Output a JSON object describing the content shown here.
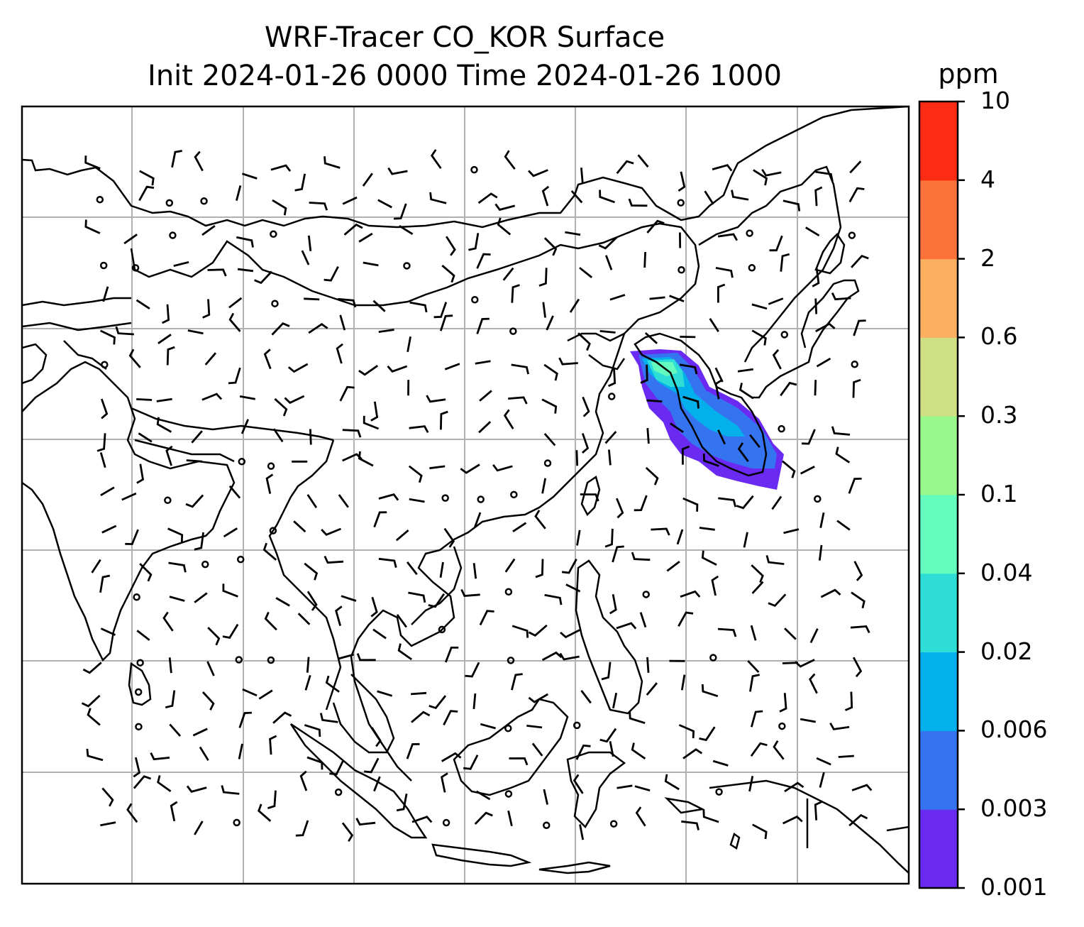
{
  "title": "WRF-Tracer CO_KOR Surface",
  "subtitle": "Init 2024-01-26 0000 Time 2024-01-26 1000",
  "colorbar": {
    "unit": "ppm",
    "levels": [
      "0.001",
      "0.003",
      "0.006",
      "0.02",
      "0.04",
      "0.1",
      "0.3",
      "0.6",
      "2",
      "4",
      "10"
    ],
    "colors": [
      "#6a2af2",
      "#3574f0",
      "#04b0ec",
      "#2fddd7",
      "#63fcbe",
      "#98f88c",
      "#cfe084",
      "#fdaf60",
      "#fc7238",
      "#fc2c14"
    ]
  },
  "map": {
    "projection": "lat-lon",
    "gridlines": true,
    "gridline_color": "#b0b0b0",
    "coastline_color": "#000000",
    "plume_location": "Korean Peninsula",
    "field": "CO_KOR tracer concentration with surface wind barbs"
  }
}
